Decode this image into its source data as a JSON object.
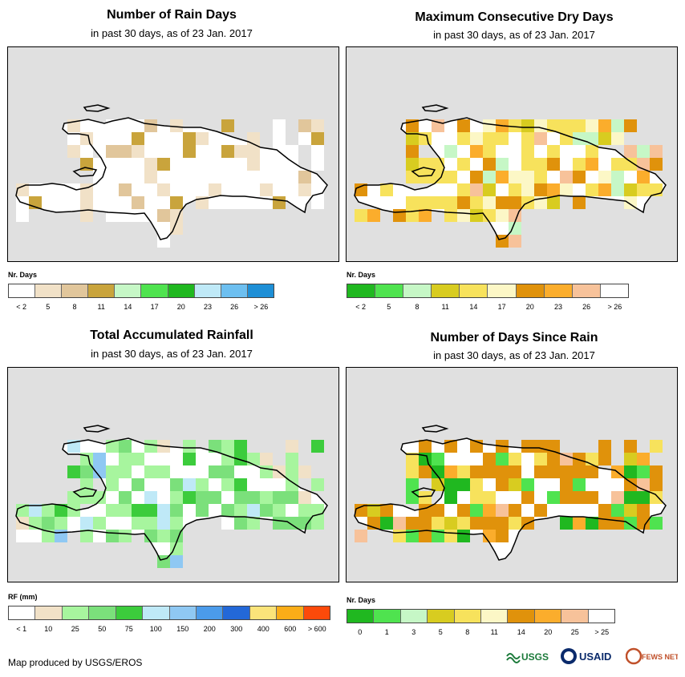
{
  "panels": [
    {
      "title": "Number of Rain Days",
      "subtitle": "in past 30 days, as of 23 Jan. 2017",
      "legend_title": "Nr. Days",
      "legend_colors": [
        "#ffffff",
        "#f1e1c7",
        "#e1c69b",
        "#c9a43c",
        "#c6f7c6",
        "#4fe34f",
        "#20b820",
        "#bfe9f7",
        "#6dbff0",
        "#1e8fd6"
      ],
      "legend_labels": [
        "< 2",
        "5",
        "8",
        "11",
        "14",
        "17",
        "20",
        "23",
        "26",
        "> 26"
      ],
      "label_mode": "center"
    },
    {
      "title": "Maximum Consecutive Dry Days",
      "subtitle": "in past 30 days, as of 23 Jan. 2017",
      "legend_title": "Nr. Days",
      "legend_colors": [
        "#20b820",
        "#4fe34f",
        "#c6f7c6",
        "#d8cc20",
        "#f7e25c",
        "#fcf7c6",
        "#e0920b",
        "#fbad2c",
        "#f7c29a",
        "#ffffff"
      ],
      "legend_labels": [
        "< 2",
        "5",
        "8",
        "11",
        "14",
        "17",
        "20",
        "23",
        "26",
        "> 26"
      ],
      "label_mode": "center"
    },
    {
      "title": "Total Accumulated Rainfall",
      "subtitle": "in past 30 days, as of 23 Jan. 2017",
      "legend_title": "RF (mm)",
      "legend_colors": [
        "#ffffff",
        "#f1e1c7",
        "#a7f59e",
        "#7be07b",
        "#3ccc3c",
        "#bfe9f7",
        "#8fc8f3",
        "#4b9bea",
        "#2368d8",
        "#fbe47a",
        "#fbad18",
        "#fc4a0a"
      ],
      "legend_labels": [
        "< 1",
        "10",
        "25",
        "50",
        "75",
        "100",
        "150",
        "200",
        "300",
        "400",
        "600",
        "> 600"
      ],
      "label_mode": "center"
    },
    {
      "title": "Number of Days Since Rain",
      "subtitle": "in past 30 days, as of 23 Jan. 2017",
      "legend_title": "Nr. Days",
      "legend_colors": [
        "#20b820",
        "#4fe34f",
        "#c6f7c6",
        "#d8cc20",
        "#f7e25c",
        "#fcf7c6",
        "#e0920b",
        "#fbad2c",
        "#f7c29a",
        "#ffffff"
      ],
      "legend_labels": [
        "0",
        "1",
        "3",
        "5",
        "8",
        "11",
        "14",
        "20",
        "25",
        "> 25"
      ],
      "label_mode": "center"
    }
  ],
  "footer": "Map produced by USGS/EROS",
  "logos": [
    "USGS",
    "USAID",
    "FEWS NET"
  ],
  "colors": {
    "map_bg": "#e0e0e0",
    "land": "#ffffff",
    "outline": "#000000"
  }
}
